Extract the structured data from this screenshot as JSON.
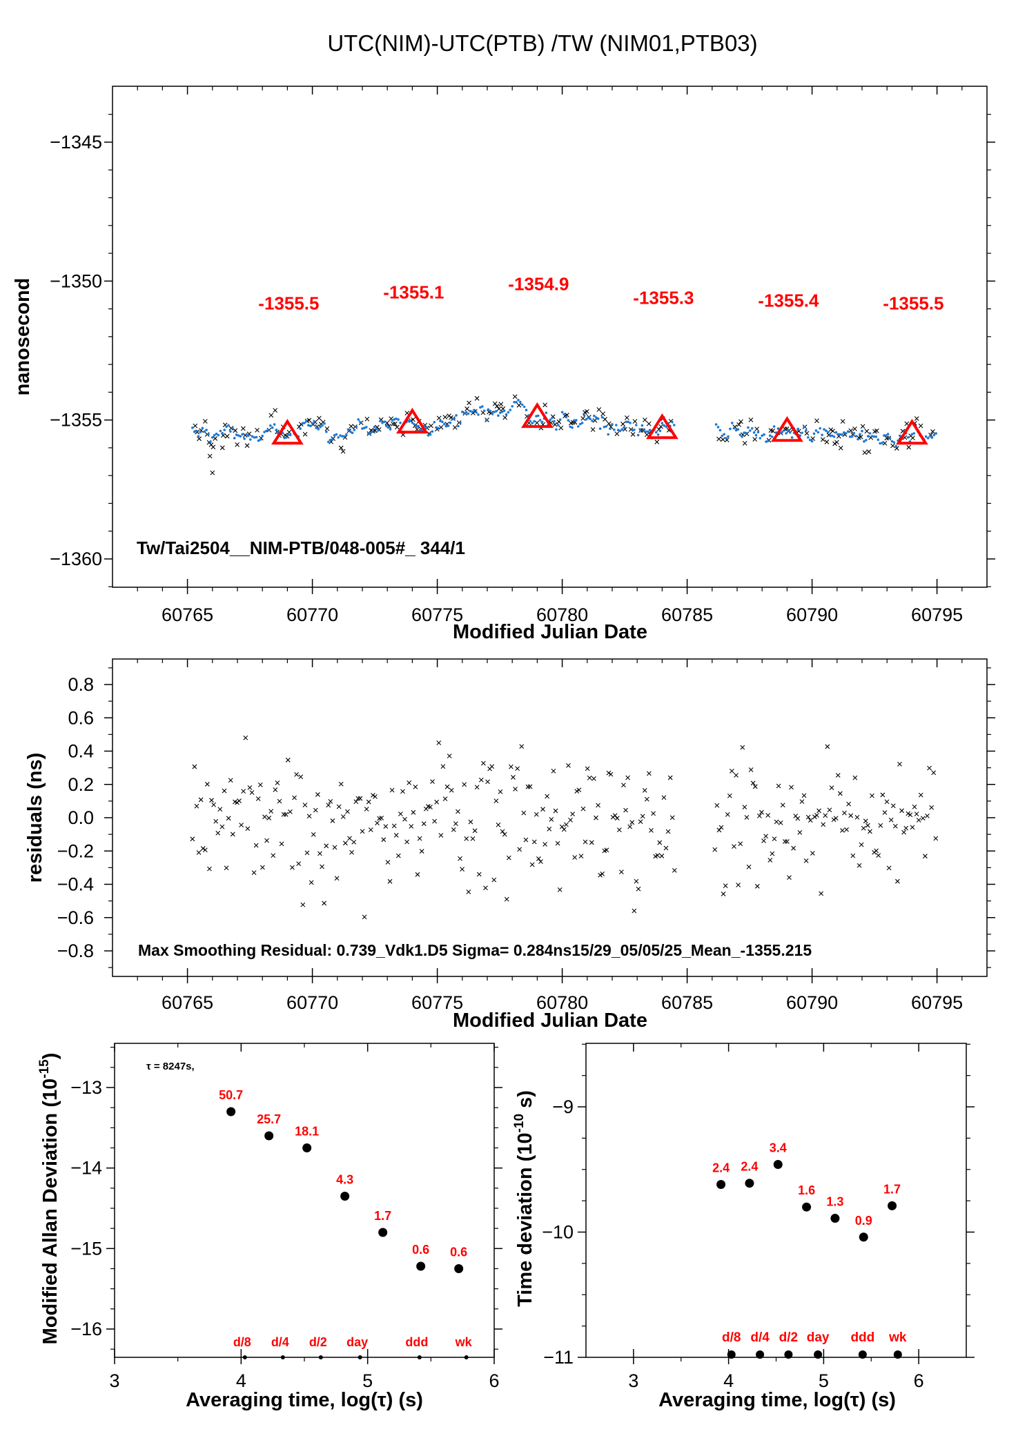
{
  "page_title": "UTC(NIM)-UTC(PTB)  /TW  (NIM01,PTB03)",
  "colors": {
    "red": "#ff0000",
    "blue": "#1e78d2",
    "black": "#000000"
  },
  "chart_data": [
    {
      "id": "timeseries",
      "type": "scatter",
      "title": "UTC(NIM)-UTC(PTB)  /TW  (NIM01,PTB03)",
      "xlabel": "Modified Julian Date",
      "ylabel": "nanosecond",
      "xlim": [
        60762,
        60797
      ],
      "ylim": [
        -1361,
        -1343
      ],
      "xticks": [
        "60765",
        "60770",
        "60775",
        "60780",
        "60785",
        "60790",
        "60795"
      ],
      "yticks": [
        "-1345",
        "-1350",
        "-1355",
        "-1360"
      ],
      "note": "Tw/Tai2504__NIM-PTB/048-005#_  344/1",
      "gap": [
        60784.5,
        60786.1
      ],
      "series": [
        {
          "marker": "x",
          "color": "#000000",
          "x_range": [
            60765.2,
            60795.0
          ],
          "mean": -1355.215
        },
        {
          "marker": "dot",
          "color": "#1e78d2",
          "x_range": [
            60765.2,
            60795.0
          ],
          "mean": -1355.215
        },
        {
          "marker": "triangle",
          "color": "#ff0000",
          "x": [
            60769,
            60774,
            60779,
            60784,
            60789,
            60794
          ],
          "y": [
            -1355.5,
            -1355.1,
            -1354.9,
            -1355.3,
            -1355.4,
            -1355.5
          ],
          "labels": [
            "-1355.5",
            "-1355.1",
            "-1354.9",
            "-1355.3",
            "-1355.4",
            "-1355.5"
          ],
          "label_y": [
            -1350.8,
            -1350.4,
            -1350.1,
            -1350.6,
            -1350.7,
            -1350.8
          ]
        }
      ]
    },
    {
      "id": "residuals",
      "type": "scatter",
      "xlabel": "Modified Julian Date",
      "ylabel": "residuals (ns)",
      "xlim": [
        60762,
        60797
      ],
      "ylim": [
        -0.9,
        0.9
      ],
      "xticks": [
        "60765",
        "60770",
        "60775",
        "60780",
        "60785",
        "60790",
        "60795"
      ],
      "yticks": [
        "0.8",
        "0.6",
        "0.4",
        "0.2",
        "0.0",
        "-0.2",
        "-0.4",
        "-0.6",
        "-0.8"
      ],
      "note": "Max Smoothing Residual: 0.739_Vdk1.D5  Sigma= 0.284ns15/29_05/05/25_Mean_-1355.215",
      "sigma": 0.284,
      "max_residual": 0.739
    },
    {
      "id": "mdev",
      "type": "scatter",
      "xlabel": "Averaging time, log(τ) (s)",
      "ylabel": "Modified Allan Deviation (10-15)",
      "ylabel_main": "Modified Allan Deviation (10",
      "ylabel_exp": "-15",
      "ylabel_end": ")",
      "xlim": [
        3,
        6
      ],
      "ylim": [
        -16.5,
        -12.5
      ],
      "xticks": [
        "3",
        "4",
        "5",
        "6"
      ],
      "yticks": [
        "-13",
        "-14",
        "-15",
        "-16"
      ],
      "tau_note": "τ = 8247s,",
      "x": [
        3.92,
        4.22,
        4.52,
        4.82,
        5.12,
        5.42,
        5.72
      ],
      "y": [
        -13.3,
        -13.6,
        -13.75,
        -14.35,
        -14.8,
        -15.22,
        -15.25
      ],
      "labels": [
        "50.7",
        "25.7",
        "18.1",
        "4.3",
        "1.7",
        "0.6",
        "0.6"
      ],
      "markers": {
        "x": [
          4.03,
          4.33,
          4.63,
          4.94,
          5.41,
          5.78
        ],
        "labels": [
          "d/8",
          "d/4",
          "d/2",
          "day",
          "ddd",
          "wk"
        ]
      }
    },
    {
      "id": "tdev",
      "type": "scatter",
      "xlabel": "Averaging time, log(τ) (s)",
      "ylabel": "Time deviation (10-10 s)",
      "ylabel_main": "Time deviation (10",
      "ylabel_exp": "-10",
      "ylabel_end": " s)",
      "xlim": [
        2.5,
        6.5
      ],
      "ylim": [
        -11,
        -8.5
      ],
      "xticks": [
        "3",
        "4",
        "5",
        "6"
      ],
      "yticks": [
        "-9",
        "-10",
        "-11"
      ],
      "x": [
        3.92,
        4.22,
        4.52,
        4.82,
        5.12,
        5.42,
        5.72
      ],
      "y": [
        -9.62,
        -9.61,
        -9.46,
        -9.8,
        -9.89,
        -10.04,
        -9.79
      ],
      "labels": [
        "2.4",
        "2.4",
        "3.4",
        "1.6",
        "1.3",
        "0.9",
        "1.7"
      ],
      "markers": {
        "x": [
          4.03,
          4.33,
          4.63,
          4.94,
          5.41,
          5.78
        ],
        "labels": [
          "d/8",
          "d/4",
          "d/2",
          "day",
          "ddd",
          "wk"
        ]
      }
    }
  ]
}
